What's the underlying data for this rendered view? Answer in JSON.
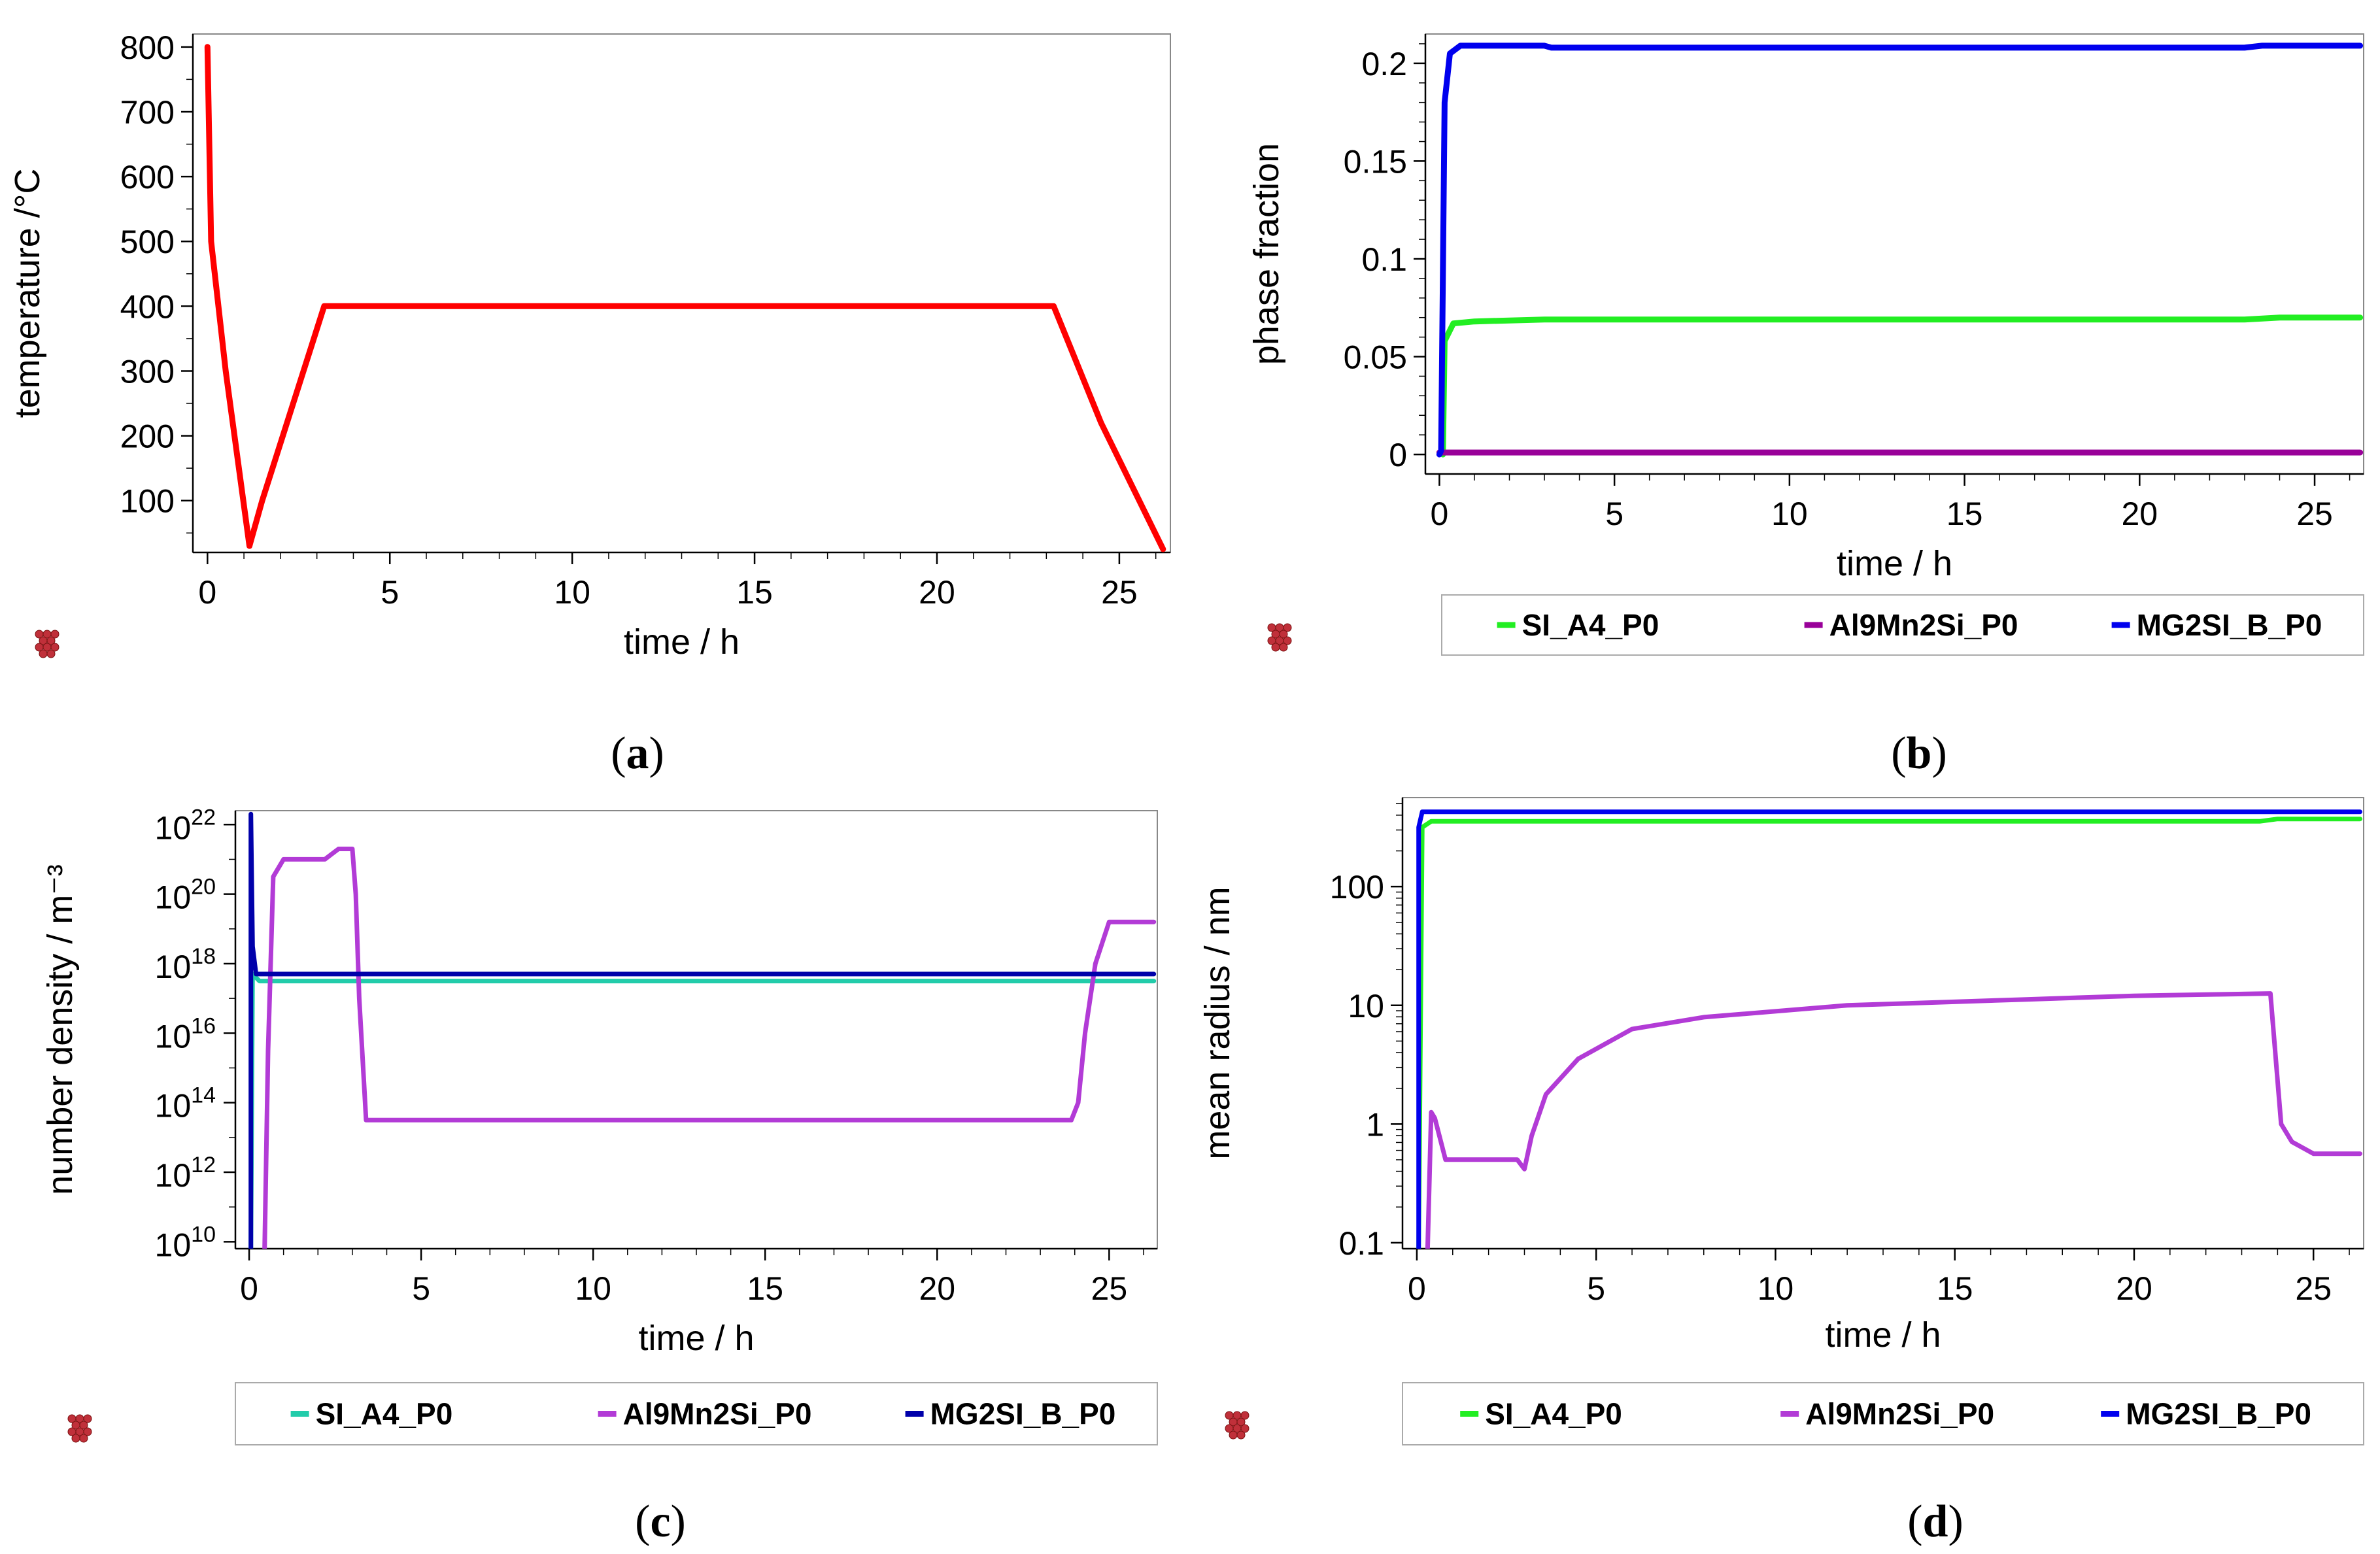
{
  "colors": {
    "red": "#ff0000",
    "green": "#22ee22",
    "purple": "#990099",
    "violet": "#b23bd6",
    "blue": "#0000ee",
    "navy": "#0000aa",
    "teal": "#22ccaa"
  },
  "chart_data": [
    {
      "id": "a",
      "type": "line",
      "caption": "a",
      "xlabel": "time / h",
      "ylabel": "temperature /°C",
      "xlim": [
        -0.4,
        26.4
      ],
      "ylim": [
        20,
        820
      ],
      "xticks": [
        0,
        5,
        10,
        15,
        20,
        25
      ],
      "yticks": [
        100,
        200,
        300,
        400,
        500,
        600,
        700,
        800
      ],
      "legend": [],
      "series": [
        {
          "name": "temperature",
          "color": "#ff0000",
          "x": [
            0,
            0.1,
            0.5,
            1.15,
            1.5,
            3.2,
            23.2,
            24.5,
            26.2
          ],
          "y": [
            800,
            500,
            300,
            30,
            100,
            400,
            400,
            220,
            25
          ]
        }
      ]
    },
    {
      "id": "b",
      "type": "line",
      "caption": "b",
      "xlabel": "time / h",
      "ylabel": "phase fraction",
      "xlim": [
        -0.4,
        26.4
      ],
      "ylim": [
        -0.01,
        0.215
      ],
      "xticks": [
        0,
        5,
        10,
        15,
        20,
        25
      ],
      "yticks": [
        0,
        0.05,
        0.1,
        0.15,
        0.2
      ],
      "legend": [
        "SI_A4_P0",
        "Al9Mn2Si_P0",
        "MG2SI_B_P0"
      ],
      "series": [
        {
          "name": "SI_A4_P0",
          "color": "#22ee22",
          "x": [
            0.1,
            0.15,
            0.4,
            1,
            3,
            10,
            23,
            24,
            26.3
          ],
          "y": [
            0,
            0.058,
            0.067,
            0.068,
            0.069,
            0.069,
            0.069,
            0.07,
            0.07
          ]
        },
        {
          "name": "Al9Mn2Si_P0",
          "color": "#990099",
          "x": [
            0,
            26.3
          ],
          "y": [
            0.001,
            0.001
          ]
        },
        {
          "name": "MG2SI_B_P0",
          "color": "#0000ee",
          "x": [
            0,
            0.05,
            0.15,
            0.3,
            0.6,
            3,
            3.2,
            23,
            23.5,
            26.3
          ],
          "y": [
            0,
            0.002,
            0.18,
            0.205,
            0.209,
            0.209,
            0.208,
            0.208,
            0.209,
            0.209
          ]
        }
      ]
    },
    {
      "id": "c",
      "type": "line",
      "caption": "c",
      "xlabel": "time / h",
      "ylabel": "number density / m⁻³",
      "xlim": [
        -0.4,
        26.4
      ],
      "ylim": [
        9.8,
        22.4
      ],
      "yscale": "log",
      "xticks": [
        0,
        5,
        10,
        15,
        20,
        25
      ],
      "yticks": [
        10,
        12,
        14,
        16,
        18,
        20,
        22
      ],
      "ytick_labels": [
        "10",
        "10",
        "10",
        "10",
        "10",
        "10",
        "10"
      ],
      "ytick_exponents": [
        "10",
        "12",
        "14",
        "16",
        "18",
        "20",
        "22"
      ],
      "legend": [
        "SI_A4_P0",
        "Al9Mn2Si_P0",
        "MG2SI_B_P0"
      ],
      "series": [
        {
          "name": "SI_A4_P0",
          "color": "#22ccaa",
          "x": [
            0.05,
            0.1,
            0.3,
            26.3
          ],
          "y": [
            9.8,
            17.7,
            17.5,
            17.5
          ]
        },
        {
          "name": "Al9Mn2Si_P0",
          "color": "#b23bd6",
          "x": [
            0.45,
            0.55,
            0.7,
            1,
            2.2,
            2.6,
            3,
            3.1,
            3.2,
            3.4,
            23.9,
            24.1,
            24.3,
            24.6,
            25,
            26.3
          ],
          "y": [
            9.8,
            15.5,
            20.5,
            21,
            21,
            21.3,
            21.3,
            20,
            17,
            13.5,
            13.5,
            14,
            16,
            18,
            19.2,
            19.2
          ]
        },
        {
          "name": "MG2SI_B_P0",
          "color": "#0000aa",
          "x": [
            0.05,
            0.05,
            0.1,
            0.2,
            26.3
          ],
          "y": [
            9.8,
            22.3,
            18.5,
            17.7,
            17.7
          ]
        }
      ]
    },
    {
      "id": "d",
      "type": "line",
      "caption": "d",
      "xlabel": "time / h",
      "ylabel": "mean radius / nm",
      "xlim": [
        -0.4,
        26.4
      ],
      "ylim": [
        -1.05,
        2.75
      ],
      "yscale": "log",
      "xticks": [
        0,
        5,
        10,
        15,
        20,
        25
      ],
      "yticks": [
        -1,
        0,
        1,
        2
      ],
      "ytick_labels": [
        "0.1",
        "1",
        "10",
        "100"
      ],
      "legend": [
        "SI_A4_P0",
        "Al9Mn2Si_P0",
        "MG2SI_B_P0"
      ],
      "series": [
        {
          "name": "SI_A4_P0",
          "color": "#22ee22",
          "x": [
            0.05,
            0.15,
            0.4,
            23.5,
            24,
            26.3
          ],
          "y": [
            -1.05,
            2.5,
            2.55,
            2.55,
            2.57,
            2.57
          ]
        },
        {
          "name": "Al9Mn2Si_P0",
          "color": "#b23bd6",
          "x": [
            0.3,
            0.4,
            0.5,
            0.8,
            1.5,
            2.8,
            3,
            3.2,
            3.6,
            4.5,
            6,
            8,
            12,
            17,
            20,
            23.8,
            24.1,
            24.4,
            25,
            26.3
          ],
          "y": [
            -1.05,
            0.1,
            0.05,
            -0.3,
            -0.3,
            -0.3,
            -0.38,
            -0.1,
            0.25,
            0.55,
            0.8,
            0.9,
            1.0,
            1.05,
            1.08,
            1.1,
            0.0,
            -0.15,
            -0.25,
            -0.25
          ]
        },
        {
          "name": "MG2SI_B_P0",
          "color": "#0000ee",
          "x": [
            0.05,
            0.05,
            0.15,
            26.3
          ],
          "y": [
            -1.05,
            2.5,
            2.63,
            2.63
          ]
        }
      ]
    }
  ]
}
